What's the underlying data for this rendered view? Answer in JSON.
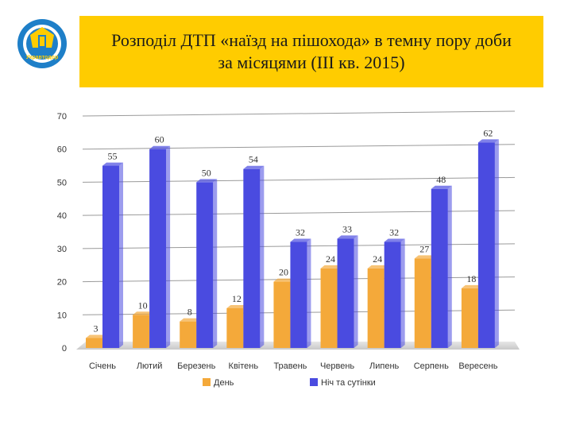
{
  "logo": {
    "text": "Укравтодор"
  },
  "title": {
    "line1": "Розподіл ДТП «наїзд на пішохода» в темну пору доби",
    "line2": "за місяцями (III кв. 2015)"
  },
  "chart_data": {
    "type": "bar",
    "categories": [
      "Січень",
      "Лютий",
      "Березень",
      "Квітень",
      "Травень",
      "Червень",
      "Липень",
      "Серпень",
      "Вересень"
    ],
    "series": [
      {
        "name": "День",
        "values": [
          3,
          10,
          8,
          12,
          20,
          24,
          24,
          27,
          18
        ],
        "color": "#f4a93a"
      },
      {
        "name": "Ніч та сутінки",
        "values": [
          55,
          60,
          50,
          54,
          32,
          33,
          32,
          48,
          62
        ],
        "color": "#4a4be0"
      }
    ],
    "ylim": [
      0,
      70
    ],
    "yticks": [
      0,
      10,
      20,
      30,
      40,
      50,
      60,
      70
    ],
    "grid": true,
    "legend": "bottom"
  }
}
